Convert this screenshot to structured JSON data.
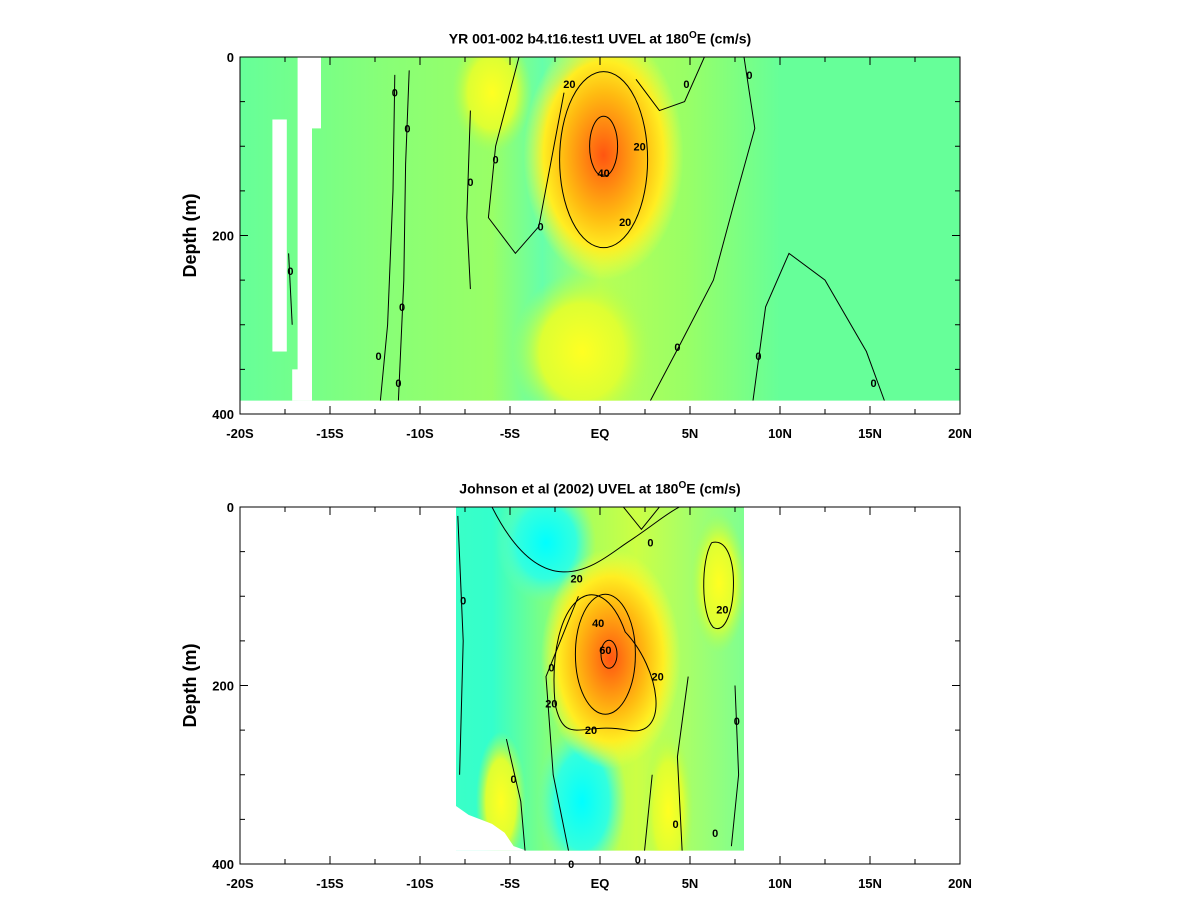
{
  "chart_data": [
    {
      "type": "heatmap",
      "title_prefix": "YR 001-002 b4.t16.test1 UVEL at 180",
      "title_sup": "O",
      "title_suffix": "E (cm/s)",
      "ylabel": "Depth (m)",
      "xlim": [
        -20,
        20
      ],
      "ylim": [
        0,
        400
      ],
      "x_ticks": [
        -20,
        -15,
        -10,
        -5,
        0,
        5,
        10,
        15,
        20
      ],
      "x_tick_labels": [
        "-20S",
        "-15S",
        "-10S",
        "-5S",
        "EQ",
        "5N",
        "10N",
        "15N",
        "20N"
      ],
      "y_ticks": [
        0,
        200,
        400
      ],
      "y_tick_labels": [
        "0",
        "200",
        "400"
      ],
      "data_extent": {
        "lon": [
          -20,
          20
        ],
        "depth_max": 385
      },
      "core": {
        "lon": 0.2,
        "depth": 100,
        "max": 50
      },
      "contour_labels": [
        {
          "text": "0",
          "lon": -11.4,
          "depth": 40
        },
        {
          "text": "0",
          "lon": -10.7,
          "depth": 80
        },
        {
          "text": "0",
          "lon": -7.2,
          "depth": 140
        },
        {
          "text": "0",
          "lon": -5.8,
          "depth": 115
        },
        {
          "text": "0",
          "lon": -3.3,
          "depth": 190
        },
        {
          "text": "0",
          "lon": -17.2,
          "depth": 240
        },
        {
          "text": "0",
          "lon": -11.0,
          "depth": 280
        },
        {
          "text": "0",
          "lon": -12.3,
          "depth": 335
        },
        {
          "text": "0",
          "lon": -11.2,
          "depth": 365
        },
        {
          "text": "0",
          "lon": 4.8,
          "depth": 30
        },
        {
          "text": "0",
          "lon": 8.3,
          "depth": 20
        },
        {
          "text": "0",
          "lon": 4.3,
          "depth": 325
        },
        {
          "text": "0",
          "lon": 8.8,
          "depth": 335
        },
        {
          "text": "0",
          "lon": 15.2,
          "depth": 365
        },
        {
          "text": "20",
          "lon": -1.7,
          "depth": 30
        },
        {
          "text": "20",
          "lon": 2.2,
          "depth": 100
        },
        {
          "text": "20",
          "lon": 1.4,
          "depth": 185
        },
        {
          "text": "40",
          "lon": 0.2,
          "depth": 130
        }
      ]
    },
    {
      "type": "heatmap",
      "title_prefix": "Johnson et al (2002) UVEL at 180",
      "title_sup": "O",
      "title_suffix": "E (cm/s)",
      "ylabel": "Depth (m)",
      "xlim": [
        -20,
        20
      ],
      "ylim": [
        0,
        400
      ],
      "x_ticks": [
        -20,
        -15,
        -10,
        -5,
        0,
        5,
        10,
        15,
        20
      ],
      "x_tick_labels": [
        "-20S",
        "-15S",
        "-10S",
        "-5S",
        "EQ",
        "5N",
        "10N",
        "15N",
        "20N"
      ],
      "y_ticks": [
        0,
        200,
        400
      ],
      "y_tick_labels": [
        "0",
        "200",
        "400"
      ],
      "data_extent": {
        "lon": [
          -8,
          8
        ],
        "depth_max": 385
      },
      "core": {
        "lon": 0.6,
        "depth": 165,
        "max": 60
      },
      "contour_labels": [
        {
          "text": "0",
          "lon": -7.6,
          "depth": 105
        },
        {
          "text": "0",
          "lon": 2.8,
          "depth": 40
        },
        {
          "text": "0",
          "lon": -4.8,
          "depth": 305
        },
        {
          "text": "0",
          "lon": -2.7,
          "depth": 180
        },
        {
          "text": "0",
          "lon": 7.6,
          "depth": 240
        },
        {
          "text": "0",
          "lon": 4.2,
          "depth": 355
        },
        {
          "text": "0",
          "lon": 6.4,
          "depth": 365
        },
        {
          "text": "0",
          "lon": 2.1,
          "depth": 395
        },
        {
          "text": "0",
          "lon": -1.6,
          "depth": 400
        },
        {
          "text": "20",
          "lon": -1.3,
          "depth": 80
        },
        {
          "text": "20",
          "lon": -2.7,
          "depth": 220
        },
        {
          "text": "20",
          "lon": -0.5,
          "depth": 250
        },
        {
          "text": "20",
          "lon": 3.2,
          "depth": 190
        },
        {
          "text": "20",
          "lon": 6.8,
          "depth": 115
        },
        {
          "text": "40",
          "lon": -0.1,
          "depth": 130
        },
        {
          "text": "60",
          "lon": 0.3,
          "depth": 160
        }
      ]
    }
  ]
}
